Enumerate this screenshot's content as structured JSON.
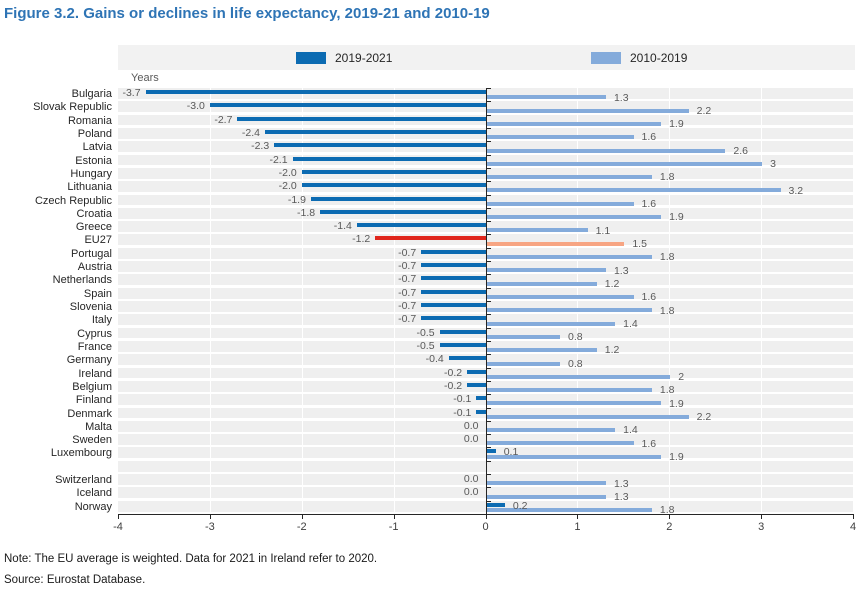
{
  "figure": {
    "title": "Figure 3.2. Gains or declines in life expectancy, 2019-21 and 2010-19",
    "note": "Note: The EU average is weighted. Data for 2021 in Ireland refer to 2020.",
    "source": "Source: Eurostat Database."
  },
  "chart_data": {
    "type": "bar",
    "orientation": "horizontal",
    "grouped": true,
    "unit_label": "Years",
    "xlim": [
      -4,
      4
    ],
    "x_ticks": [
      "-4",
      "-3",
      "-2",
      "-1",
      "0",
      "1",
      "2",
      "3",
      "4"
    ],
    "grid": "vertical-white-lines-on-stripes",
    "legend_position": "top",
    "legend": [
      {
        "label": "2019-2021",
        "color": "#0c6bb2"
      },
      {
        "label": "2010-2019",
        "color": "#84abdb"
      }
    ],
    "highlight": {
      "category": "EU27",
      "color_2019_2021": "#e0261c",
      "color_2010_2019": "#f7a583"
    },
    "colors": {
      "bar_2019_2021": "#0c6bb2",
      "bar_2010_2019": "#84abdb",
      "stripe": "#efefef",
      "axis": "#262626",
      "value_label": "#595959",
      "title": "#2e74b5"
    },
    "spacer_after_index": 27,
    "categories": [
      "Bulgaria",
      "Slovak Republic",
      "Romania",
      "Poland",
      "Latvia",
      "Estonia",
      "Hungary",
      "Lithuania",
      "Czech Republic",
      "Croatia",
      "Greece",
      "EU27",
      "Portugal",
      "Austria",
      "Netherlands",
      "Spain",
      "Slovenia",
      "Italy",
      "Cyprus",
      "France",
      "Germany",
      "Ireland",
      "Belgium",
      "Finland",
      "Denmark",
      "Malta",
      "Sweden",
      "Luxembourg",
      "Switzerland",
      "Iceland",
      "Norway"
    ],
    "series": [
      {
        "name": "2019-2021",
        "values": [
          -3.7,
          -3.0,
          -2.7,
          -2.4,
          -2.3,
          -2.1,
          -2.0,
          -2.0,
          -1.9,
          -1.8,
          -1.4,
          -1.2,
          -0.7,
          -0.7,
          -0.7,
          -0.7,
          -0.7,
          -0.7,
          -0.5,
          -0.5,
          -0.4,
          -0.2,
          -0.2,
          -0.1,
          -0.1,
          0.0,
          0.0,
          0.1,
          0.0,
          0.0,
          0.2
        ],
        "labels": [
          "-3.7",
          "-3.0",
          "-2.7",
          "-2.4",
          "-2.3",
          "-2.1",
          "-2.0",
          "-2.0",
          "-1.9",
          "-1.8",
          "-1.4",
          "-1.2",
          "-0.7",
          "-0.7",
          "-0.7",
          "-0.7",
          "-0.7",
          "-0.7",
          "-0.5",
          "-0.5",
          "-0.4",
          "-0.2",
          "-0.2",
          "-0.1",
          "-0.1",
          "0.0",
          "0.0",
          "0.1",
          "0.0",
          "0.0",
          "0.2"
        ]
      },
      {
        "name": "2010-2019",
        "values": [
          1.3,
          2.2,
          1.9,
          1.6,
          2.6,
          3.0,
          1.8,
          3.2,
          1.6,
          1.9,
          1.1,
          1.5,
          1.8,
          1.3,
          1.2,
          1.6,
          1.8,
          1.4,
          0.8,
          1.2,
          0.8,
          2.0,
          1.8,
          1.9,
          2.2,
          1.4,
          1.6,
          1.9,
          1.3,
          1.3,
          1.8
        ],
        "labels": [
          "1.3",
          "2.2",
          "1.9",
          "1.6",
          "2.6",
          "3",
          "1.8",
          "3.2",
          "1.6",
          "1.9",
          "1.1",
          "1.5",
          "1.8",
          "1.3",
          "1.2",
          "1.6",
          "1.8",
          "1.4",
          "0.8",
          "1.2",
          "0.8",
          "2",
          "1.8",
          "1.9",
          "2.2",
          "1.4",
          "1.6",
          "1.9",
          "1.3",
          "1.3",
          "1.8"
        ]
      }
    ]
  }
}
